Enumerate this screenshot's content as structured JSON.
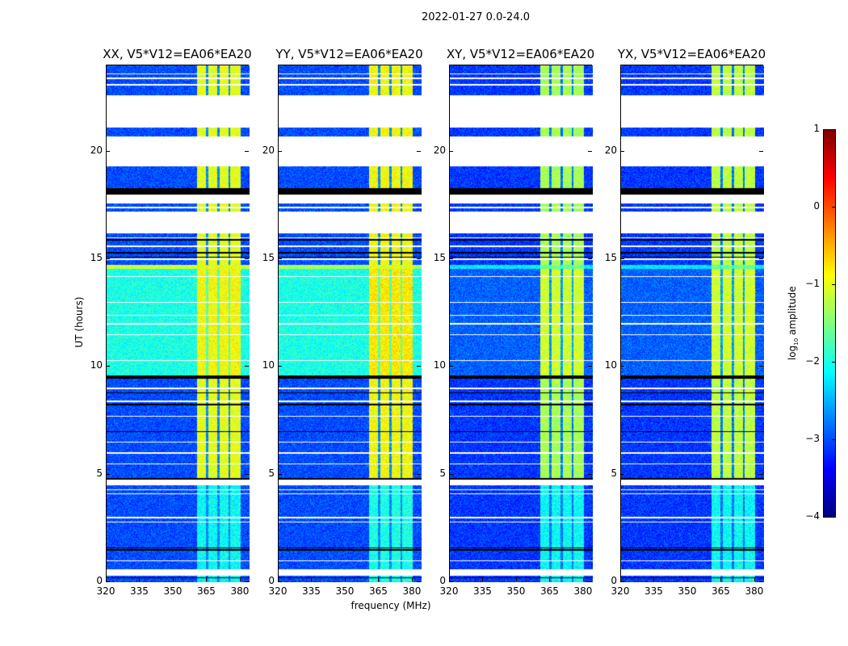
{
  "title": "2022-01-27 0.0-24.0",
  "chart_data": {
    "type": "heatmap",
    "title": "2022-01-27 0.0-24.0",
    "xlabel": "frequency (MHz)",
    "ylabel": "UT (hours)",
    "xlim": [
      320,
      384
    ],
    "ylim": [
      0,
      24
    ],
    "xticks": [
      320,
      335,
      350,
      365,
      380
    ],
    "yticks": [
      0,
      5,
      10,
      15,
      20
    ],
    "colorbar": {
      "label": "log10 amplitude",
      "label_main": "log",
      "label_sub": "10",
      "label_rest": " amplitude",
      "range": [
        -4,
        1
      ],
      "ticks": [
        1,
        0,
        -1,
        -2,
        -3,
        -4
      ],
      "colormap": "jet"
    },
    "panels": [
      {
        "title": "XX, V5*V12=EA06*EA20",
        "pol": "XX"
      },
      {
        "title": "YY, V5*V12=EA06*EA20",
        "pol": "YY"
      },
      {
        "title": "XY, V5*V12=EA06*EA20",
        "pol": "XY"
      },
      {
        "title": "YX, V5*V12=EA06*EA20",
        "pol": "YX"
      }
    ],
    "band_mhz": [
      360.5,
      380
    ],
    "band_gaps_mhz": [
      365,
      370,
      375
    ],
    "regime_levels": {
      "low": {
        "XX": {
          "base": -3.0,
          "band": -1.0
        },
        "YY": {
          "base": -3.0,
          "band": -0.9
        },
        "XY": {
          "base": -3.1,
          "band": -1.3
        },
        "YX": {
          "base": -3.1,
          "band": -1.2
        }
      },
      "mid": {
        "XX": {
          "base": -2.0,
          "band": -0.9
        },
        "YY": {
          "base": -2.0,
          "band": -0.8
        },
        "XY": {
          "base": -2.9,
          "band": -1.1
        },
        "YX": {
          "base": -2.9,
          "band": -1.1
        }
      },
      "weak": {
        "XX": {
          "base": -3.0,
          "band": -2.1
        },
        "YY": {
          "base": -3.0,
          "band": -2.0
        },
        "XY": {
          "base": -3.1,
          "band": -2.1
        },
        "YX": {
          "base": -3.1,
          "band": -2.1
        }
      },
      "bright": {
        "XX": {
          "base": -1.1,
          "band": -1.0
        },
        "YY": {
          "base": -1.3,
          "band": -1.0
        },
        "XY": {
          "base": -2.2,
          "band": -1.6
        },
        "YX": {
          "base": -2.2,
          "band": -1.6
        }
      }
    },
    "segments": [
      {
        "t0": 22.6,
        "t1": 24.0,
        "type": "data",
        "regime": "low"
      },
      {
        "t0": 21.1,
        "t1": 22.6,
        "type": "flagged"
      },
      {
        "t0": 20.7,
        "t1": 21.1,
        "type": "data",
        "regime": "low"
      },
      {
        "t0": 19.3,
        "t1": 20.7,
        "type": "flagged"
      },
      {
        "t0": 18.3,
        "t1": 19.3,
        "type": "data",
        "regime": "low"
      },
      {
        "t0": 18.0,
        "t1": 18.3,
        "type": "blank"
      },
      {
        "t0": 17.6,
        "t1": 18.0,
        "type": "flagged"
      },
      {
        "t0": 17.2,
        "t1": 17.6,
        "type": "data",
        "regime": "low"
      },
      {
        "t0": 16.2,
        "t1": 17.2,
        "type": "flagged"
      },
      {
        "t0": 14.75,
        "t1": 16.2,
        "type": "data",
        "regime": "low"
      },
      {
        "t0": 14.55,
        "t1": 14.75,
        "type": "data",
        "regime": "bright"
      },
      {
        "t0": 9.6,
        "t1": 14.55,
        "type": "data",
        "regime": "mid"
      },
      {
        "t0": 9.45,
        "t1": 9.6,
        "type": "blank"
      },
      {
        "t0": 4.75,
        "t1": 9.45,
        "type": "data",
        "regime": "low"
      },
      {
        "t0": 4.5,
        "t1": 4.75,
        "type": "flagged"
      },
      {
        "t0": 0.6,
        "t1": 4.5,
        "type": "data",
        "regime": "weak"
      },
      {
        "t0": 0.3,
        "t1": 0.6,
        "type": "flagged"
      },
      {
        "t0": 0.0,
        "t1": 0.3,
        "type": "data",
        "regime": "weak"
      }
    ],
    "flagged_lines": [
      23.6,
      23.4,
      23.1,
      17.4,
      16.0,
      15.6,
      15.0,
      14.2,
      13.0,
      12.4,
      12.0,
      11.5,
      10.3,
      9.0,
      8.4,
      7.7,
      6.5,
      6.0,
      5.5,
      4.3,
      4.1,
      3.0,
      2.8,
      1.0
    ],
    "blank_lines": [
      18.1,
      15.9,
      15.3,
      15.1,
      9.5,
      8.8,
      8.25,
      7.0,
      4.8,
      1.6,
      1.5,
      0.2
    ]
  }
}
